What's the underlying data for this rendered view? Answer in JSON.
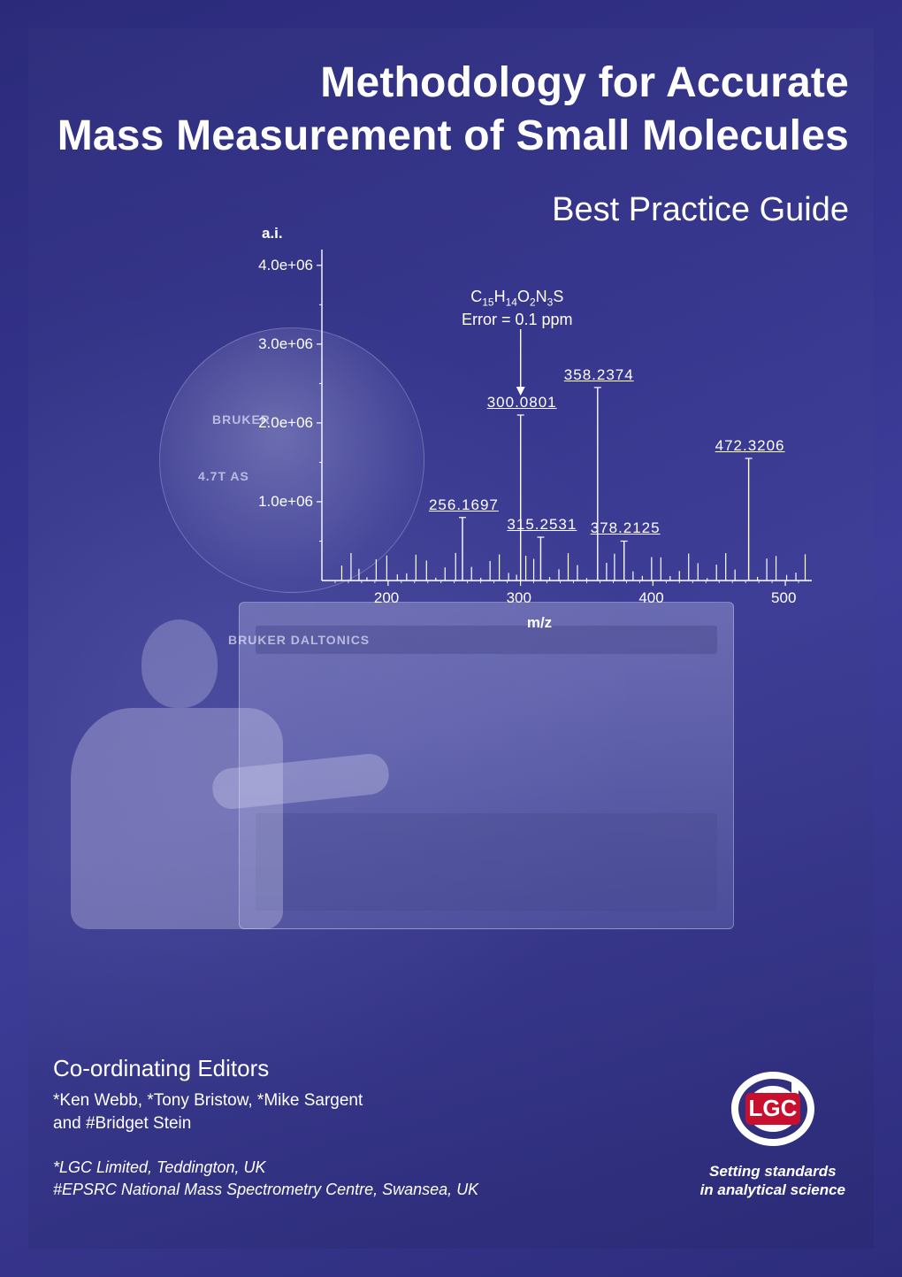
{
  "title": {
    "line1": "Methodology for Accurate",
    "line2": "Mass Measurement of Small Molecules",
    "fontsize": 48,
    "weight": 700,
    "align": "right",
    "color": "#ffffff"
  },
  "subtitle": {
    "text": "Best Practice Guide",
    "fontsize": 38,
    "weight": 400,
    "align": "right",
    "color": "#ffffff"
  },
  "background": {
    "gradient_colors": [
      "#2b2a7a",
      "#35358f",
      "#3e3e9a",
      "#2d2c7c"
    ],
    "tint": "blue-violet",
    "instrument_photo": true
  },
  "photo_labels": {
    "magnet_brand": "BRUKER",
    "magnet_spec": "4.7T AS",
    "panel_brand": "BRUKER DALTONICS"
  },
  "spectrum": {
    "type": "mass-spectrum",
    "x_axis": {
      "label": "m/z",
      "min": 150,
      "max": 520,
      "ticks": [
        200,
        300,
        400,
        500
      ]
    },
    "y_axis": {
      "label": "a.i.",
      "min": 0,
      "max": 4200000.0,
      "tick_labels": [
        "1.0e+06",
        "2.0e+06",
        "3.0e+06",
        "4.0e+06"
      ],
      "tick_values": [
        1000000.0,
        2000000.0,
        3000000.0,
        4000000.0
      ]
    },
    "axis_color": "#ffffff",
    "line_color": "#ffffff",
    "line_width": 1.2,
    "label_fontsize": 17,
    "labeled_peaks": [
      {
        "mz": 256.1697,
        "intensity": 800000.0,
        "label": "256.1697"
      },
      {
        "mz": 300.0801,
        "intensity": 2100000.0,
        "label": "300.0801"
      },
      {
        "mz": 315.2531,
        "intensity": 550000.0,
        "label": "315.2531"
      },
      {
        "mz": 358.2374,
        "intensity": 2450000.0,
        "label": "358.2374"
      },
      {
        "mz": 378.2125,
        "intensity": 500000.0,
        "label": "378.2125"
      },
      {
        "mz": 472.3206,
        "intensity": 1550000.0,
        "label": "472.3206"
      }
    ],
    "background_peaks_mz": [
      165,
      172,
      178,
      184,
      191,
      199,
      207,
      214,
      221,
      229,
      236,
      243,
      251,
      263,
      270,
      277,
      284,
      291,
      297,
      304,
      310,
      322,
      329,
      336,
      343,
      350,
      365,
      371,
      385,
      392,
      399,
      406,
      413,
      420,
      427,
      434,
      441,
      448,
      455,
      462,
      479,
      486,
      493,
      501,
      508,
      515
    ],
    "background_intensity_range": [
      30000.0,
      350000.0
    ],
    "annotation": {
      "formula_html": "C<span class='sub'>15</span>H<span class='sub'>14</span>O<span class='sub'>2</span>N<span class='sub'>3</span>S",
      "error_text": "Error = 0.1 ppm",
      "points_to_mz": 300.0801
    }
  },
  "editors": {
    "heading": "Co-ordinating Editors",
    "names_line1": "*Ken Webb, *Tony Bristow, *Mike Sargent",
    "names_line2": "and #Bridget Stein",
    "affiliations": [
      "*LGC Limited, Teddington, UK",
      "#EPSRC National Mass Spectrometry Centre, Swansea, UK"
    ]
  },
  "brand": {
    "name": "LGC",
    "logo_color": "#ffffff",
    "logo_badge_color": "#c8102e",
    "tagline_line1": "Setting standards",
    "tagline_line2": "in analytical science"
  }
}
